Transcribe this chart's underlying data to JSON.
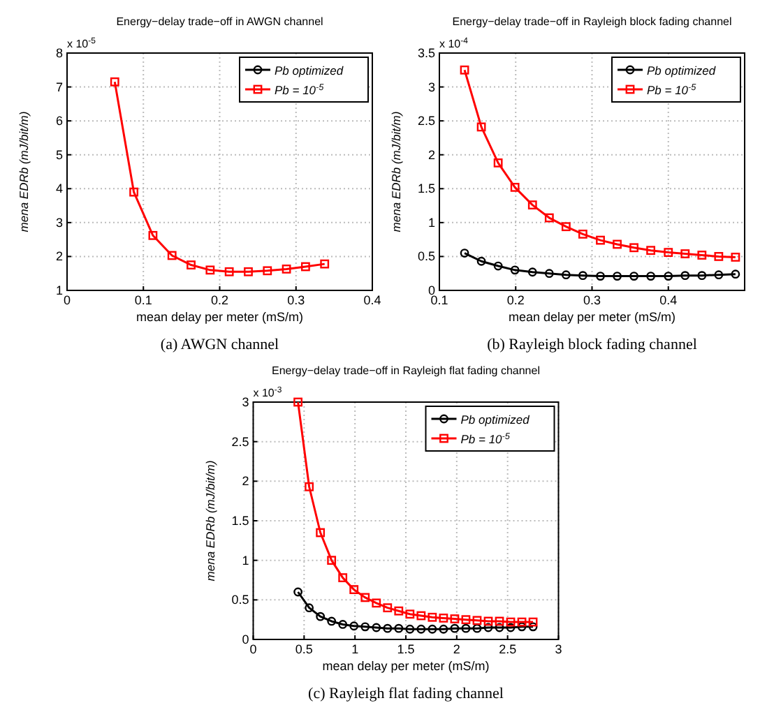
{
  "chart_data": [
    {
      "type": "line",
      "title": "Energy−delay trade−off in AWGN channel",
      "xlabel": "mean delay per meter (mS/m)",
      "ylabel": "mena EDRb (mJ/bit/m)",
      "annotations": [
        "x 10$^{-5}$",
        "(a) AWGN channel"
      ],
      "x": [
        0.0625,
        0.0875,
        0.1125,
        0.1375,
        0.1625,
        0.1875,
        0.2125,
        0.2375,
        0.2625,
        0.2875,
        0.3125,
        0.3375
      ],
      "series": [
        {
          "name": "Pb optimized",
          "color": "#000000",
          "marker": "circle",
          "values": [
            null,
            null,
            null,
            null,
            null,
            null,
            null,
            null,
            null,
            null,
            null,
            null
          ]
        },
        {
          "name": "Pb = 10$^{-5}$",
          "color": "#ff0000",
          "marker": "square",
          "values": [
            7.15,
            3.9,
            2.62,
            2.03,
            1.75,
            1.6,
            1.55,
            1.55,
            1.58,
            1.63,
            1.7,
            1.78
          ]
        }
      ],
      "xlim": [
        0,
        0.4
      ],
      "xticks": [
        0,
        0.1,
        0.2,
        0.3,
        0.4
      ],
      "ylim": [
        1,
        8
      ],
      "yticks": [
        1,
        2,
        3,
        4,
        5,
        6,
        7,
        8
      ],
      "grid": true,
      "legend": "top right",
      "line_style": "solid"
    },
    {
      "type": "line",
      "title": "Energy−delay trade−off in Rayleigh block fading channel",
      "xlabel": "mean delay per meter (mS/m)",
      "ylabel": "mena EDRb (mJ/bit/m)",
      "annotations": [
        "x 10$^{-4}$",
        "(b) Rayleigh block fading channel"
      ],
      "x": [
        0.133,
        0.155,
        0.177,
        0.199,
        0.222,
        0.244,
        0.266,
        0.288,
        0.311,
        0.333,
        0.355,
        0.377,
        0.4,
        0.422,
        0.444,
        0.466,
        0.488
      ],
      "series": [
        {
          "name": "Pb optimized",
          "color": "#000000",
          "marker": "circle",
          "values": [
            0.55,
            0.43,
            0.36,
            0.3,
            0.27,
            0.25,
            0.23,
            0.22,
            0.21,
            0.21,
            0.21,
            0.21,
            0.21,
            0.22,
            0.22,
            0.23,
            0.24
          ]
        },
        {
          "name": "Pb = 10$^{-5}$",
          "color": "#ff0000",
          "marker": "square",
          "values": [
            3.25,
            2.41,
            1.88,
            1.52,
            1.26,
            1.07,
            0.94,
            0.83,
            0.74,
            0.68,
            0.63,
            0.59,
            0.56,
            0.54,
            0.52,
            0.5,
            0.49
          ]
        }
      ],
      "xlim": [
        0.1,
        0.5
      ],
      "xticks": [
        0.1,
        0.2,
        0.3,
        0.4
      ],
      "ylim": [
        0,
        3.5
      ],
      "yticks": [
        0,
        0.5,
        1,
        1.5,
        2,
        2.5,
        3,
        3.5
      ],
      "grid": true,
      "legend": "top right",
      "line_style": "solid"
    },
    {
      "type": "line",
      "title": "Energy−delay trade−off in Rayleigh flat fading channel",
      "xlabel": "mean delay per meter (mS/m)",
      "ylabel": "mena EDRb (mJ/bit/m)",
      "annotations": [
        "x 10$^{-3}$",
        "(c) Rayleigh flat fading channel"
      ],
      "x": [
        0.44,
        0.55,
        0.66,
        0.77,
        0.88,
        0.99,
        1.1,
        1.21,
        1.32,
        1.43,
        1.54,
        1.65,
        1.76,
        1.87,
        1.98,
        2.09,
        2.2,
        2.31,
        2.42,
        2.53,
        2.64,
        2.75
      ],
      "series": [
        {
          "name": "Pb optimized",
          "color": "#000000",
          "marker": "circle",
          "values": [
            0.6,
            0.4,
            0.29,
            0.23,
            0.19,
            0.17,
            0.16,
            0.15,
            0.14,
            0.14,
            0.13,
            0.13,
            0.13,
            0.13,
            0.14,
            0.14,
            0.14,
            0.15,
            0.15,
            0.15,
            0.16,
            0.16
          ]
        },
        {
          "name": "Pb = 10$^{-5}$",
          "color": "#ff0000",
          "marker": "square",
          "values": [
            3.0,
            1.93,
            1.35,
            1.0,
            0.78,
            0.63,
            0.53,
            0.46,
            0.4,
            0.36,
            0.32,
            0.3,
            0.28,
            0.27,
            0.26,
            0.25,
            0.24,
            0.23,
            0.23,
            0.22,
            0.22,
            0.22
          ]
        }
      ],
      "xlim": [
        0,
        3
      ],
      "xticks": [
        0,
        0.5,
        1,
        1.5,
        2,
        2.5,
        3
      ],
      "ylim": [
        0,
        3
      ],
      "yticks": [
        0,
        0.5,
        1,
        1.5,
        2,
        2.5,
        3
      ],
      "grid": true,
      "legend": "top right",
      "line_style": "solid"
    }
  ]
}
